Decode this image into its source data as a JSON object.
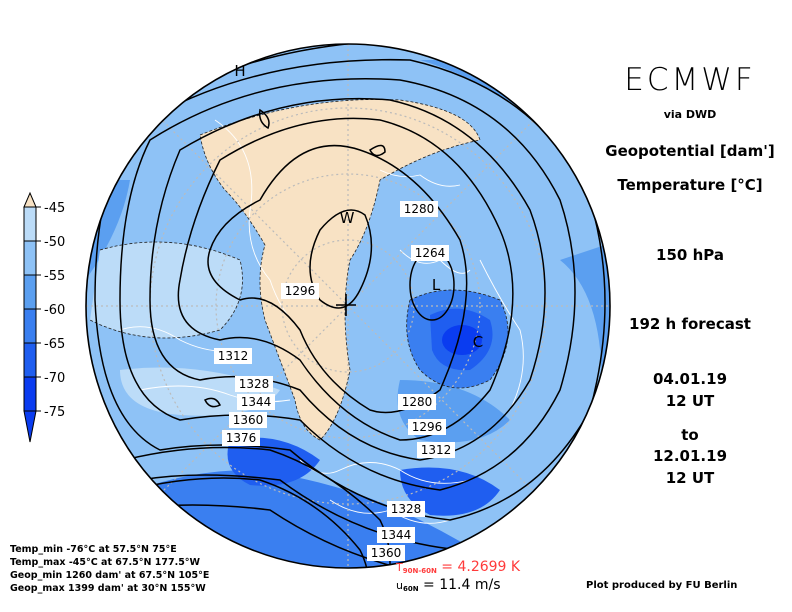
{
  "header": {
    "title": "ECMWF",
    "via": "via DWD",
    "variable_1": "Geopotential [dam']",
    "variable_2": "Temperature [°C]",
    "level": "150 hPa",
    "forecast": "192 h forecast",
    "init_date": "04.01.19",
    "init_time": "12 UT",
    "to_word": "to",
    "valid_date": "12.01.19",
    "valid_time": "12 UT"
  },
  "legend": {
    "ticks": [
      "-45",
      "-50",
      "-55",
      "-60",
      "-65",
      "-70",
      "-75"
    ],
    "colors": [
      "#f8e2c4",
      "#bcdcf8",
      "#8ec2f6",
      "#5b9ff0",
      "#3a7ff0",
      "#1f5ef0",
      "#0a3cf0"
    ]
  },
  "contours": {
    "labels": [
      "1280",
      "1264",
      "1296",
      "1312",
      "1328",
      "1344",
      "1360",
      "1376",
      "1280",
      "1296",
      "1312",
      "1328",
      "1344",
      "1360"
    ]
  },
  "centers": {
    "high": "H",
    "warm": "W",
    "low": "L",
    "cold": "C"
  },
  "stats": {
    "temp_min": "Temp_min -76°C at 57.5°N 75°E",
    "temp_max": "Temp_max -45°C at 67.5°N 177.5°W",
    "geop_min": "Geop_min 1260 dam' at 67.5°N 105°E",
    "geop_max": "Geop_max 1399 dam' at 30°N 155°W"
  },
  "means": {
    "t_symbol": "T",
    "t_sub": "90N-60N",
    "t_value": "= 4.2699 K",
    "u_symbol": "u",
    "u_sub": "60N",
    "u_value": "= 11.4 m/s"
  },
  "credit": "Plot produced by FU Berlin"
}
